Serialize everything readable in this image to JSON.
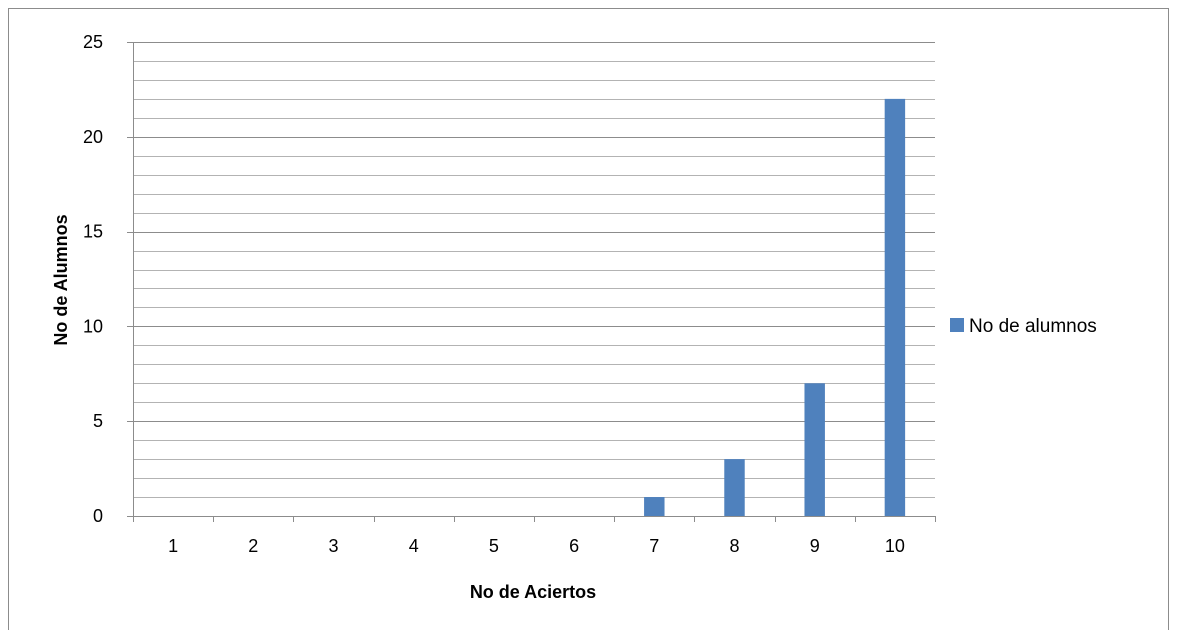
{
  "chart_data": {
    "type": "bar",
    "title": "",
    "xlabel": "No de Aciertos",
    "ylabel": "No de Alumnos",
    "categories": [
      "1",
      "2",
      "3",
      "4",
      "5",
      "6",
      "7",
      "8",
      "9",
      "10"
    ],
    "series": [
      {
        "name": "No de alumnos",
        "values": [
          0,
          0,
          0,
          0,
          0,
          0,
          1,
          3,
          7,
          22
        ],
        "color": "#4F81BD"
      }
    ],
    "ylim": [
      0,
      25
    ],
    "major_step": 5,
    "minor_step": 1,
    "y_ticks": [
      "0",
      "5",
      "10",
      "15",
      "20",
      "25"
    ],
    "grid": true,
    "legend_position": "right"
  }
}
